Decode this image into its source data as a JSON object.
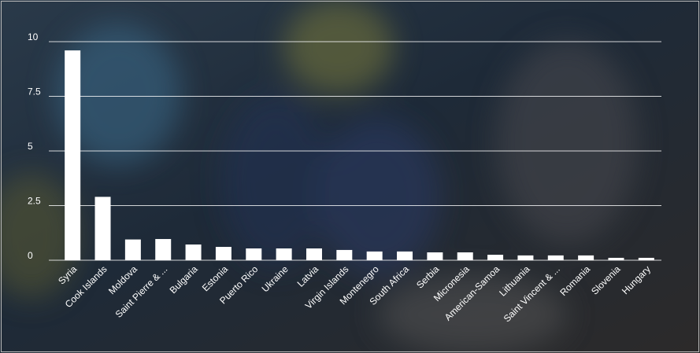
{
  "chart_data": {
    "type": "bar",
    "categories": [
      "Syria",
      "Cook Islands",
      "Moldova",
      "Saint Pierre & ...",
      "Bulgaria",
      "Estonia",
      "Puerto Rico",
      "Ukraine",
      "Latvia",
      "Virgin Islands",
      "Montenegro",
      "South Africa",
      "Serbia",
      "Micronesia",
      "American-Samoa",
      "Lithuania",
      "Saint Vincent & ...",
      "Romania",
      "Slovenia",
      "Hungary"
    ],
    "values": [
      9.6,
      2.9,
      0.95,
      0.97,
      0.72,
      0.61,
      0.54,
      0.54,
      0.54,
      0.47,
      0.4,
      0.4,
      0.36,
      0.36,
      0.25,
      0.22,
      0.22,
      0.22,
      0.11,
      0.11
    ],
    "color": "#ffffff",
    "ylim": [
      0,
      10
    ],
    "yticks": [
      0,
      2.5,
      5,
      7.5,
      10
    ],
    "grid": true
  }
}
